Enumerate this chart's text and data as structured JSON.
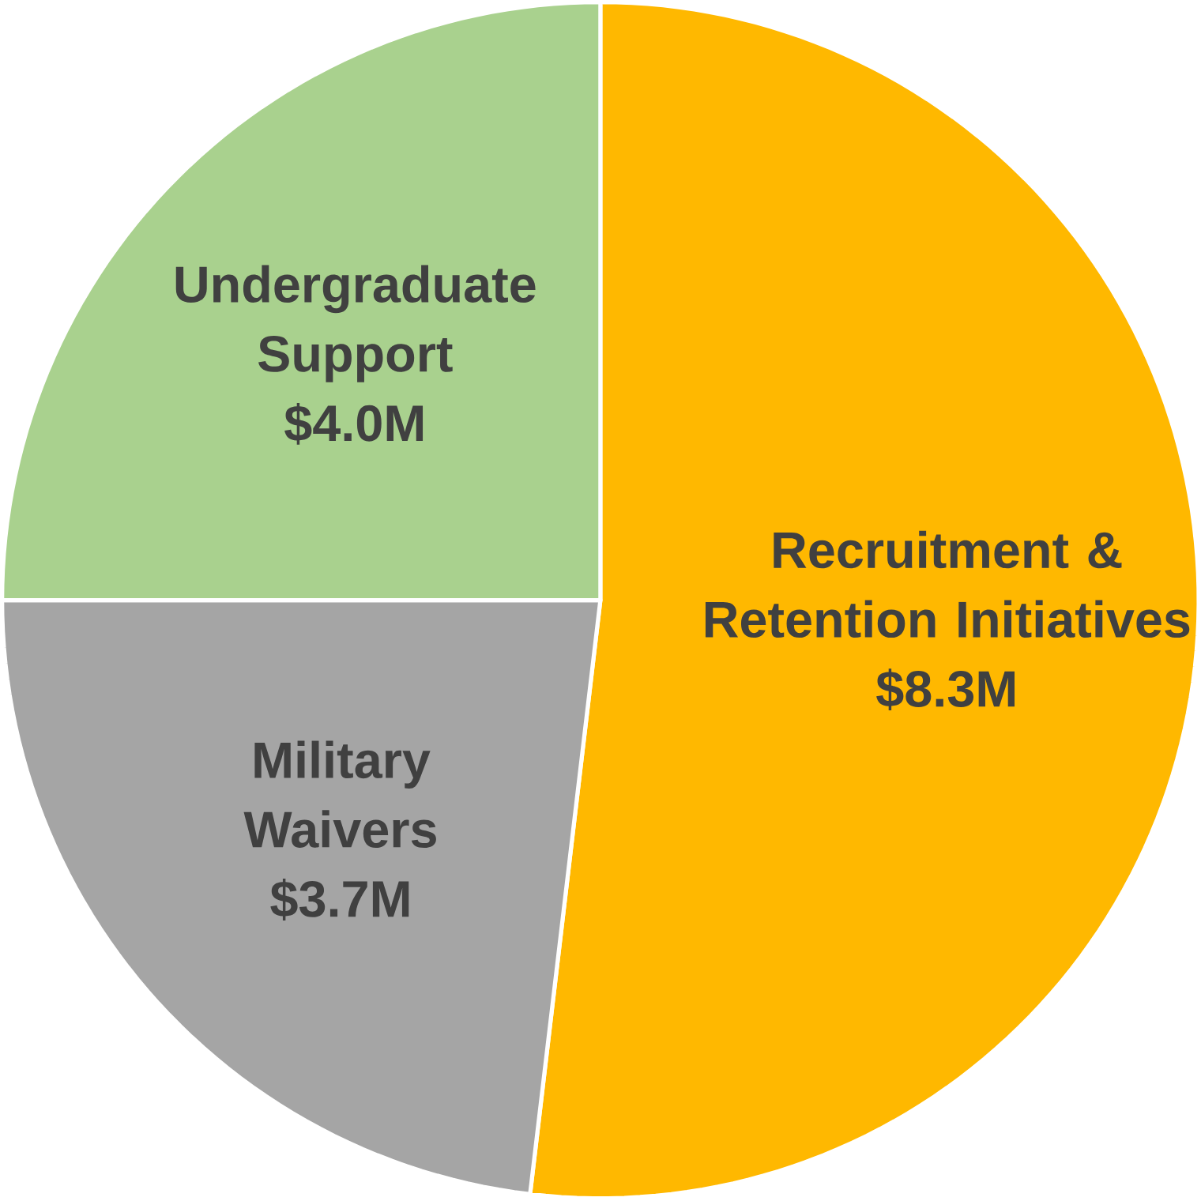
{
  "chart_data": {
    "type": "pie",
    "categories": [
      "Recruitment & Retention Initiatives",
      "Military Waivers",
      "Undergraduate Support"
    ],
    "values": [
      8.3,
      3.7,
      4.0
    ],
    "value_labels": [
      "$8.3M",
      "$3.7M",
      "$4.0M"
    ],
    "colors": [
      "#ffb800",
      "#a5a5a5",
      "#a9d18e"
    ]
  }
}
